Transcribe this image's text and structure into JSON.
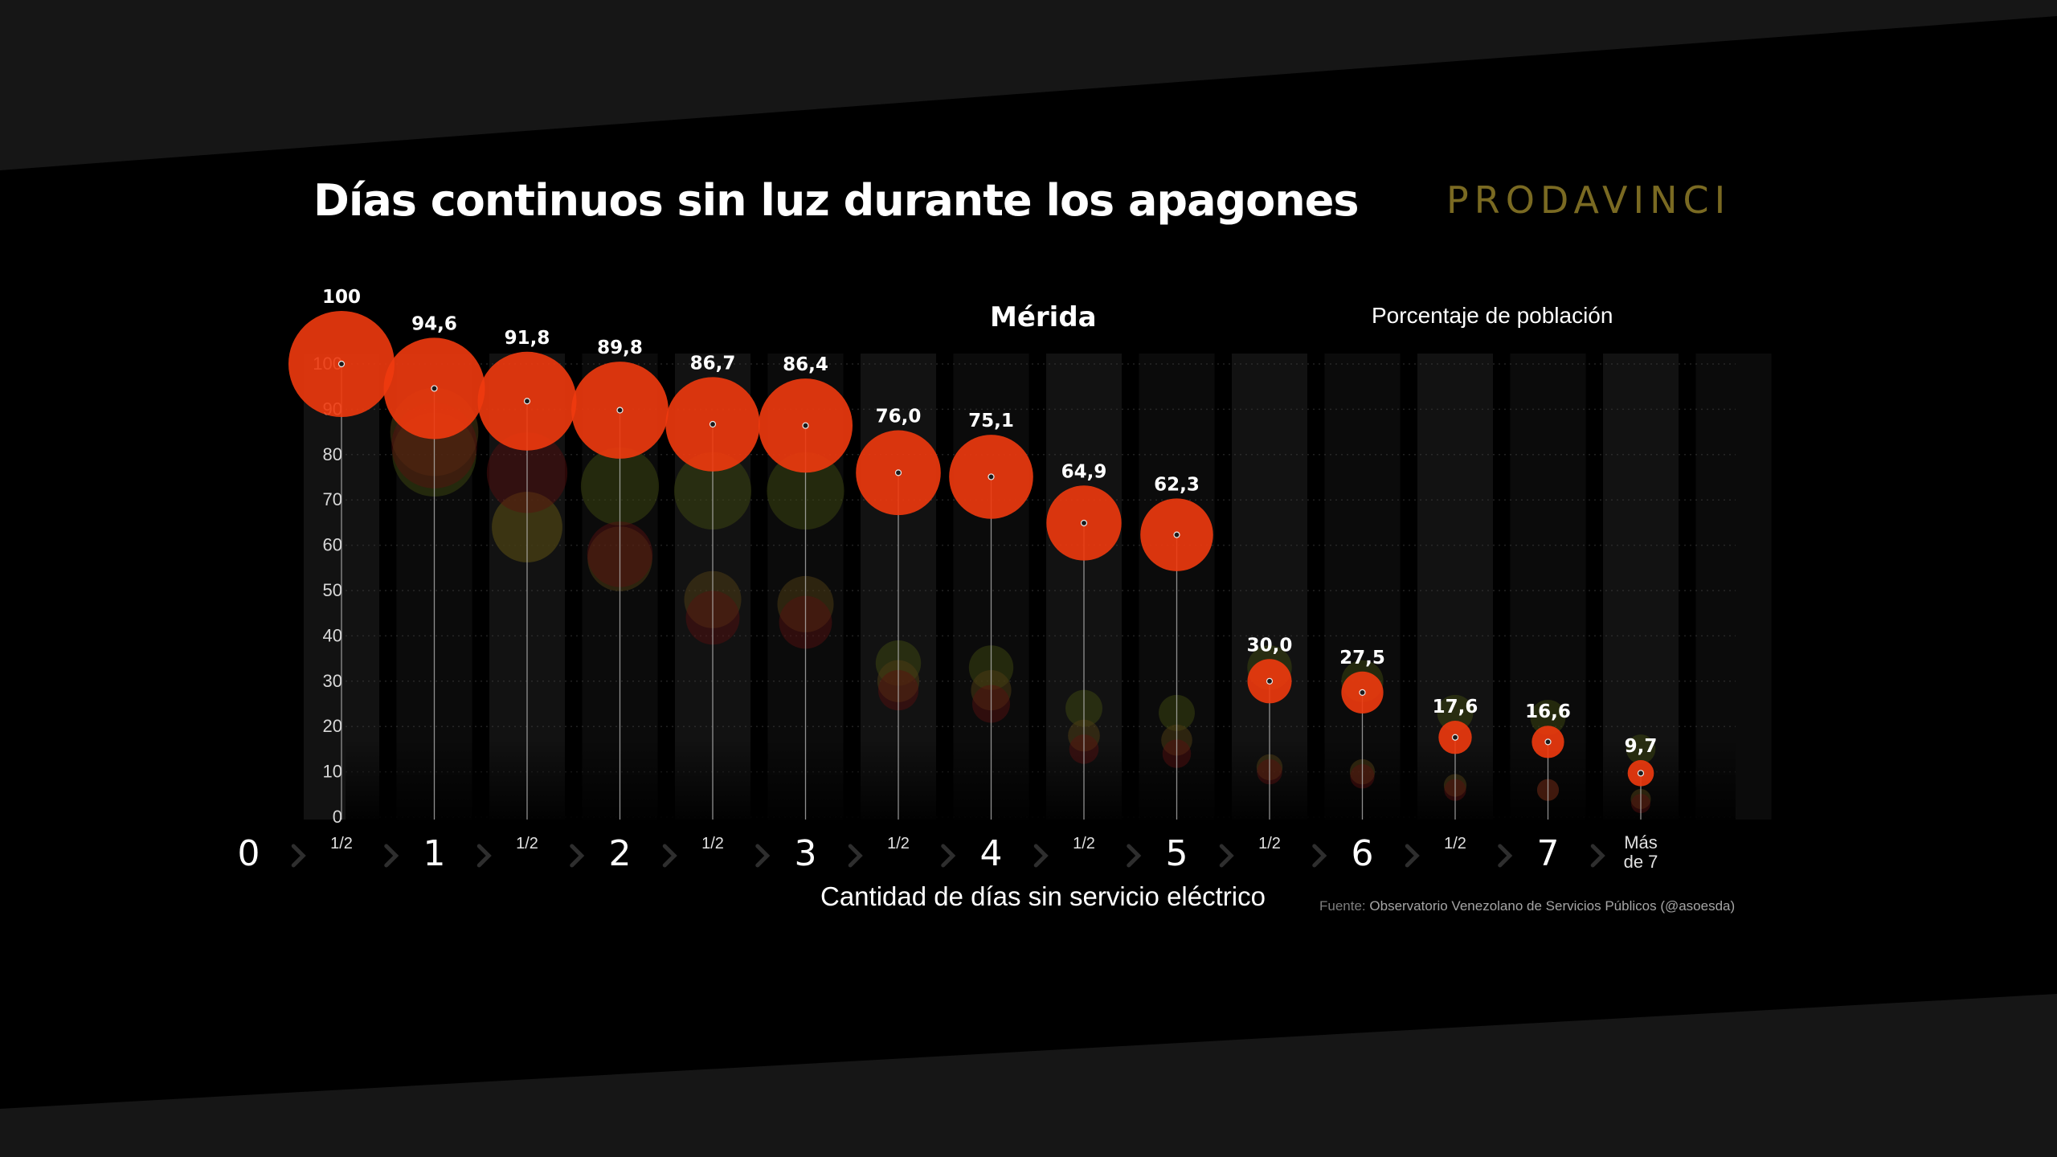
{
  "title": "Días continuos sin luz durante los apagones",
  "brand": "PRODAVINCI",
  "region": "Mérida",
  "units_label": "Porcentaje de población",
  "source_prefix": "Fuente:",
  "source_text": "Observatorio Venezolano de Servicios Públicos (@asoesda)",
  "colors": {
    "background": "#000000",
    "band": "#141414",
    "highlight": "#f03a0e",
    "green_shadow": "#3a4410",
    "red_shadow": "#5a1010",
    "brand": "#7a6a22"
  },
  "chart_data": {
    "type": "scatter",
    "title": "Días continuos sin luz durante los apagones",
    "subtitle": "Mérida",
    "xlabel": "Cantidad de días sin servicio eléctrico",
    "ylabel": "Porcentaje de población",
    "ylim": [
      0,
      100
    ],
    "y_ticks": [
      "0",
      "10",
      "20",
      "30",
      "40",
      "50",
      "60",
      "70",
      "80",
      "90",
      "100"
    ],
    "x_major_ticks": [
      "0",
      "1",
      "2",
      "3",
      "4",
      "5",
      "6",
      "7"
    ],
    "x_minor_tick": "1/2",
    "x_last_tick": [
      "Más",
      "de 7"
    ],
    "categories": [
      "1/2",
      "1",
      "1 1/2",
      "2",
      "2 1/2",
      "3",
      "3 1/2",
      "4",
      "4 1/2",
      "5",
      "5 1/2",
      "6",
      "6 1/2",
      "7",
      "Más de 7"
    ],
    "series": [
      {
        "name": "Mérida",
        "values": [
          100,
          94.6,
          91.8,
          89.8,
          86.7,
          86.4,
          76.0,
          75.1,
          64.9,
          62.3,
          30.0,
          27.5,
          17.6,
          16.6,
          9.7
        ],
        "value_labels": [
          "100",
          "94,6",
          "91,8",
          "89,8",
          "86,7",
          "86,4",
          "76,0",
          "75,1",
          "64,9",
          "62,3",
          "30,0",
          "27,5",
          "17,6",
          "16,6",
          "9,7"
        ]
      },
      {
        "values": [
          100,
          80,
          64,
          73,
          72,
          72,
          34,
          33,
          24,
          23,
          33,
          30,
          23,
          22,
          15
        ]
      },
      {
        "values": [
          100,
          85,
          64,
          57,
          48,
          47,
          30,
          28,
          18,
          17,
          11,
          10,
          7,
          6,
          4
        ]
      },
      {
        "values": [
          100,
          82,
          76,
          58,
          44,
          43,
          28,
          25,
          15,
          14,
          10,
          9,
          6,
          6,
          3
        ]
      }
    ],
    "grid": false,
    "legend": "none"
  }
}
